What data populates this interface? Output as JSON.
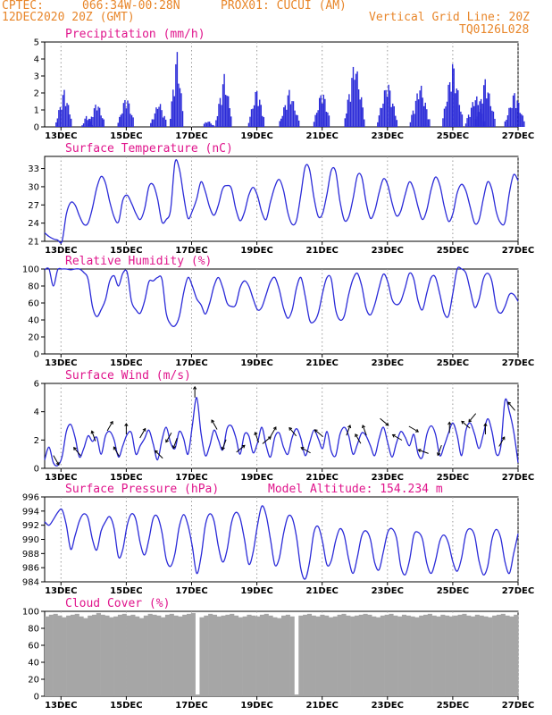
{
  "header": {
    "agency": "CPTEC:",
    "location": "066:34W-00:28N",
    "station": "PROX01: CUCUI (AM)",
    "datetime": "12DEC2020 20Z (GMT)",
    "grid_note": "Vertical Grid Line: 20Z",
    "code": "TQ0126L028"
  },
  "colors": {
    "header": "#e8862a",
    "title": "#e0158c",
    "series": "#2b2bd8",
    "cloud": "#a6a6a6",
    "grid": "#9a9a9a"
  },
  "x_axis": {
    "tick_labels": [
      "13DEC",
      "15DEC",
      "17DEC",
      "19DEC",
      "21DEC",
      "23DEC",
      "25DEC",
      "27DEC"
    ],
    "range_days": [
      0,
      14.5
    ]
  },
  "chart_data": [
    {
      "id": "precip",
      "type": "bar",
      "title": "Precipitation (mm/h)",
      "ylim": [
        0,
        5
      ],
      "yticks": [
        0,
        1,
        2,
        3,
        4,
        5
      ],
      "events": [
        {
          "day": 0.6,
          "w": 0.25,
          "peak": 2.3
        },
        {
          "day": 1.3,
          "w": 0.15,
          "peak": 0.8
        },
        {
          "day": 1.6,
          "w": 0.25,
          "peak": 1.6
        },
        {
          "day": 2.5,
          "w": 0.25,
          "peak": 2.0
        },
        {
          "day": 3.5,
          "w": 0.25,
          "peak": 1.6
        },
        {
          "day": 4.05,
          "w": 0.2,
          "peak": 4.7
        },
        {
          "day": 5.0,
          "w": 0.2,
          "peak": 0.4
        },
        {
          "day": 5.5,
          "w": 0.25,
          "peak": 3.2
        },
        {
          "day": 6.5,
          "w": 0.25,
          "peak": 2.4
        },
        {
          "day": 7.5,
          "w": 0.3,
          "peak": 2.3
        },
        {
          "day": 8.5,
          "w": 0.25,
          "peak": 2.4
        },
        {
          "day": 9.5,
          "w": 0.3,
          "peak": 4.2
        },
        {
          "day": 10.5,
          "w": 0.3,
          "peak": 2.9
        },
        {
          "day": 11.5,
          "w": 0.3,
          "peak": 2.7
        },
        {
          "day": 12.5,
          "w": 0.3,
          "peak": 4.0
        },
        {
          "day": 13.2,
          "w": 0.3,
          "peak": 2.0
        },
        {
          "day": 13.5,
          "w": 0.3,
          "peak": 3.0
        },
        {
          "day": 14.4,
          "w": 0.3,
          "peak": 2.2
        }
      ]
    },
    {
      "id": "temp",
      "type": "line",
      "title": "Surface Temperature (nC)",
      "ylim": [
        21,
        35
      ],
      "yticks": [
        21,
        24,
        27,
        30,
        33
      ],
      "y": [
        22.4,
        21.8,
        21.4,
        21.2,
        21.0,
        25.5,
        27.4,
        27.0,
        25.2,
        23.8,
        24.0,
        26.5,
        29.8,
        31.7,
        30.6,
        27.5,
        25.0,
        24.2,
        27.8,
        28.6,
        27.3,
        25.6,
        24.6,
        26.3,
        30.0,
        30.3,
        28.0,
        24.2,
        24.6,
        26.2,
        34.0,
        33.0,
        28.5,
        24.8,
        26.0,
        28.0,
        30.8,
        29.2,
        26.6,
        25.3,
        27.0,
        29.7,
        30.2,
        29.7,
        26.4,
        24.4,
        25.8,
        28.6,
        29.9,
        28.5,
        25.8,
        24.6,
        27.5,
        30.0,
        31.2,
        29.4,
        25.7,
        23.8,
        24.5,
        28.8,
        33.3,
        32.8,
        28.2,
        25.1,
        25.6,
        28.8,
        32.7,
        32.5,
        27.6,
        24.5,
        25.0,
        28.0,
        31.8,
        31.6,
        27.5,
        24.8,
        26.0,
        29.0,
        31.3,
        30.3,
        27.3,
        25.2,
        26.0,
        28.7,
        30.8,
        29.5,
        26.6,
        24.6,
        26.2,
        29.6,
        31.6,
        30.2,
        26.8,
        24.3,
        25.6,
        29.0,
        30.4,
        29.3,
        26.6,
        24.0,
        24.5,
        28.0,
        30.8,
        29.5,
        25.8,
        24.0,
        24.2,
        29.0,
        32.0,
        31.0
      ]
    },
    {
      "id": "rh",
      "type": "line",
      "title": "Relative Humidity (%)",
      "ylim": [
        0,
        100
      ],
      "yticks": [
        0,
        20,
        40,
        60,
        80,
        100
      ],
      "y": [
        99,
        100,
        80,
        99,
        100,
        100,
        99,
        100,
        100,
        96,
        88,
        56,
        44,
        52,
        64,
        86,
        92,
        80,
        95,
        96,
        62,
        52,
        48,
        62,
        85,
        86,
        90,
        88,
        48,
        35,
        33,
        44,
        72,
        90,
        80,
        65,
        58,
        47,
        60,
        80,
        90,
        78,
        60,
        56,
        58,
        78,
        86,
        80,
        65,
        52,
        55,
        70,
        85,
        90,
        76,
        54,
        42,
        52,
        78,
        90,
        68,
        40,
        38,
        48,
        72,
        90,
        88,
        52,
        40,
        45,
        70,
        88,
        95,
        80,
        54,
        46,
        58,
        78,
        94,
        85,
        64,
        58,
        62,
        78,
        95,
        88,
        62,
        52,
        72,
        90,
        90,
        70,
        48,
        45,
        72,
        100,
        100,
        95,
        75,
        55,
        64,
        88,
        95,
        85,
        55,
        48,
        56,
        70,
        70,
        62
      ]
    },
    {
      "id": "wind",
      "type": "line",
      "title": "Surface Wind (m/s)",
      "ylim": [
        0,
        6
      ],
      "yticks": [
        0,
        2,
        4,
        6
      ],
      "y": [
        0.6,
        1.5,
        0.4,
        0.2,
        0.8,
        2.6,
        3.1,
        2.2,
        0.8,
        1.4,
        2.3,
        1.9,
        2.2,
        1.0,
        2.3,
        2.6,
        2.0,
        0.8,
        1.6,
        2.4,
        2.5,
        1.0,
        1.6,
        2.1,
        2.7,
        1.7,
        0.6,
        2.0,
        2.9,
        1.8,
        1.4,
        2.6,
        2.1,
        1.0,
        3.0,
        5.0,
        2.5,
        0.9,
        1.6,
        2.7,
        2.0,
        1.3,
        2.8,
        3.0,
        2.2,
        1.0,
        2.4,
        2.3,
        1.1,
        1.8,
        2.9,
        1.6,
        0.8,
        2.2,
        2.5,
        1.5,
        1.0,
        2.2,
        2.8,
        2.1,
        0.9,
        1.8,
        2.7,
        2.1,
        1.4,
        2.6,
        1.2,
        0.9,
        2.4,
        2.9,
        2.3,
        1.0,
        1.7,
        2.5,
        2.3,
        1.6,
        0.9,
        2.1,
        2.9,
        1.8,
        0.8,
        1.8,
        2.6,
        2.2,
        1.6,
        2.4,
        1.0,
        0.8,
        2.4,
        3.0,
        2.4,
        0.9,
        1.6,
        2.5,
        3.2,
        2.3,
        0.9,
        2.7,
        3.2,
        2.4,
        1.4,
        2.4,
        3.5,
        2.6,
        1.0,
        1.5,
        4.8,
        4.0,
        2.6,
        0.4
      ],
      "arrows": [
        {
          "day": 0.35,
          "dir": 300
        },
        {
          "day": 1.0,
          "dir": 130
        },
        {
          "day": 1.5,
          "dir": 110
        },
        {
          "day": 2.0,
          "dir": 60
        },
        {
          "day": 2.2,
          "dir": 120
        },
        {
          "day": 2.5,
          "dir": 90
        },
        {
          "day": 3.0,
          "dir": 60
        },
        {
          "day": 3.5,
          "dir": 135
        },
        {
          "day": 3.8,
          "dir": 240
        },
        {
          "day": 4.0,
          "dir": 250
        },
        {
          "day": 4.6,
          "dir": 90
        },
        {
          "day": 5.2,
          "dir": 120
        },
        {
          "day": 5.5,
          "dir": 250
        },
        {
          "day": 6.0,
          "dir": 40
        },
        {
          "day": 6.5,
          "dir": 110
        },
        {
          "day": 6.8,
          "dir": 40
        },
        {
          "day": 7.0,
          "dir": 60
        },
        {
          "day": 7.6,
          "dir": 130
        },
        {
          "day": 8.0,
          "dir": 150
        },
        {
          "day": 8.4,
          "dir": 140
        },
        {
          "day": 9.3,
          "dir": 70
        },
        {
          "day": 9.6,
          "dir": 120
        },
        {
          "day": 9.8,
          "dir": 110
        },
        {
          "day": 10.4,
          "dir": 320
        },
        {
          "day": 10.8,
          "dir": 150
        },
        {
          "day": 11.3,
          "dir": 330
        },
        {
          "day": 11.6,
          "dir": 160
        },
        {
          "day": 12.1,
          "dir": 250
        },
        {
          "day": 12.4,
          "dir": 90
        },
        {
          "day": 12.9,
          "dir": 140
        },
        {
          "day": 13.1,
          "dir": 230
        },
        {
          "day": 13.5,
          "dir": 90
        },
        {
          "day": 14.0,
          "dir": 60
        },
        {
          "day": 14.3,
          "dir": 130
        }
      ]
    },
    {
      "id": "pres",
      "type": "line",
      "title": "Surface Pressure (hPa)",
      "annotation": "Model Altitude: 154.234 m",
      "ylim": [
        984,
        996
      ],
      "yticks": [
        984,
        986,
        988,
        990,
        992,
        994,
        996
      ],
      "y": [
        992.5,
        992.0,
        992.8,
        993.8,
        994.2,
        992.0,
        988.6,
        990.5,
        992.6,
        993.6,
        993.0,
        990.0,
        988.5,
        991.2,
        992.5,
        993.2,
        991.5,
        987.5,
        988.6,
        992.0,
        993.6,
        992.8,
        989.5,
        987.8,
        990.0,
        993.0,
        993.2,
        991.0,
        987.2,
        986.2,
        988.0,
        991.8,
        993.5,
        992.0,
        989.0,
        985.2,
        987.5,
        992.0,
        993.6,
        992.6,
        989.0,
        986.8,
        988.5,
        992.3,
        993.8,
        993.0,
        990.0,
        986.5,
        988.2,
        992.0,
        994.7,
        993.4,
        990.0,
        986.4,
        987.3,
        990.8,
        993.2,
        993.0,
        990.3,
        985.8,
        984.4,
        986.8,
        991.0,
        991.8,
        989.6,
        986.4,
        987.0,
        989.8,
        991.5,
        990.5,
        987.2,
        985.2,
        987.5,
        990.5,
        991.2,
        990.0,
        986.7,
        985.7,
        988.3,
        991.0,
        991.5,
        990.2,
        986.2,
        985.0,
        987.0,
        990.6,
        991.0,
        990.0,
        986.6,
        985.2,
        987.0,
        989.8,
        990.6,
        989.4,
        986.8,
        985.5,
        987.4,
        990.8,
        991.5,
        990.5,
        987.0,
        985.0,
        986.2,
        990.0,
        991.4,
        990.2,
        986.8,
        985.2,
        988.0,
        990.8
      ]
    },
    {
      "id": "cloud",
      "type": "bar",
      "title": "Cloud Cover (%)",
      "ylim": [
        0,
        100
      ],
      "yticks": [
        0,
        20,
        40,
        60,
        80,
        100
      ],
      "y": [
        94,
        96,
        97,
        95,
        93,
        95,
        96,
        97,
        94,
        92,
        95,
        96,
        98,
        96,
        95,
        93,
        94,
        96,
        97,
        95,
        96,
        94,
        92,
        95,
        97,
        96,
        95,
        93,
        96,
        97,
        95,
        94,
        96,
        97,
        98,
        2,
        93,
        95,
        97,
        96,
        94,
        95,
        96,
        97,
        95,
        93,
        94,
        96,
        95,
        94,
        96,
        97,
        95,
        93,
        92,
        95,
        96,
        94,
        2,
        95,
        96,
        97,
        95,
        94,
        96,
        95,
        93,
        94,
        96,
        97,
        95,
        94,
        95,
        96,
        97,
        96,
        94,
        93,
        95,
        96,
        97,
        95,
        94,
        96,
        95,
        94,
        93,
        95,
        96,
        97,
        95,
        94,
        96,
        95,
        94,
        95,
        96,
        97,
        95,
        94,
        96,
        95,
        94,
        93,
        95,
        96,
        97,
        95,
        94,
        96
      ]
    }
  ]
}
